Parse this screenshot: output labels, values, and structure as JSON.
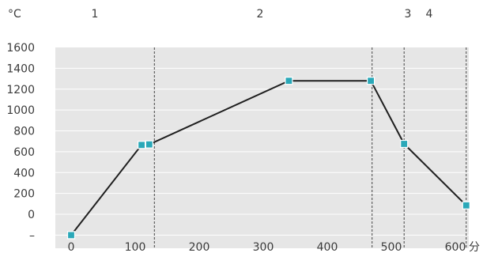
{
  "chart_data": {
    "type": "line",
    "y_unit": "°C",
    "x_unit": "分",
    "x_ticks": [
      "0",
      "100",
      "200",
      "300",
      "400",
      "500",
      "600"
    ],
    "y_ticks": [
      "–",
      "0",
      "200",
      "400",
      "600",
      "800",
      "1000",
      "1200",
      "1400",
      "1600"
    ],
    "xlim": [
      -15,
      640
    ],
    "ylim": [
      -200,
      1600
    ],
    "grid": true,
    "phase_labels": [
      "1",
      "2",
      "3",
      "4"
    ],
    "phase_boundaries": [
      130,
      470,
      520,
      617
    ],
    "series": [
      {
        "color": "#2aa8b8",
        "points": [
          {
            "x": 0,
            "y": -200
          },
          {
            "x": 110,
            "y": 665
          },
          {
            "x": 122,
            "y": 670
          },
          {
            "x": 340,
            "y": 1280
          },
          {
            "x": 468,
            "y": 1280
          },
          {
            "x": 520,
            "y": 675
          },
          {
            "x": 617,
            "y": 85
          }
        ]
      }
    ]
  }
}
